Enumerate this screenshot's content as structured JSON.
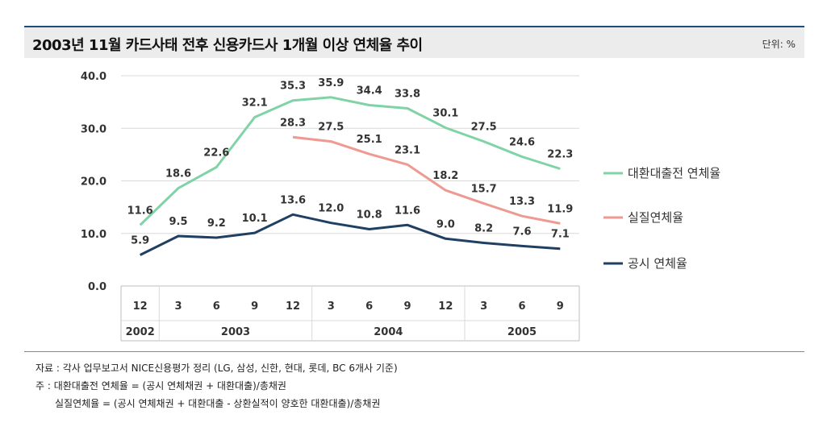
{
  "header": {
    "title": "2003년 11월 카드사태 전후 신용카드사 1개월 이상 연체율 추이",
    "unit": "단위: %"
  },
  "colors": {
    "series_0": "#7fd3a6",
    "series_1": "#ee9a92",
    "series_2": "#1f3f63"
  },
  "chart_data": {
    "type": "line",
    "x": [
      "12",
      "3",
      "6",
      "9",
      "12",
      "3",
      "6",
      "9",
      "12",
      "3",
      "6",
      "9"
    ],
    "year_groups": [
      {
        "label": "2002",
        "start": 0,
        "end": 0
      },
      {
        "label": "2003",
        "start": 1,
        "end": 4
      },
      {
        "label": "2004",
        "start": 5,
        "end": 8
      },
      {
        "label": "2005",
        "start": 9,
        "end": 11
      }
    ],
    "ylim": [
      0,
      40
    ],
    "yticks": [
      "0.0",
      "10.0",
      "20.0",
      "30.0",
      "40.0"
    ],
    "grid": true,
    "legend_position": "right",
    "series": [
      {
        "name": "대환대출전 연체율",
        "values": [
          11.6,
          18.6,
          22.6,
          32.1,
          35.3,
          35.9,
          34.4,
          33.8,
          30.1,
          27.5,
          24.6,
          22.3
        ]
      },
      {
        "name": "실질연체율",
        "values": [
          null,
          null,
          null,
          null,
          28.3,
          27.5,
          25.1,
          23.1,
          18.2,
          15.7,
          13.3,
          11.9
        ]
      },
      {
        "name": "공시 연체율",
        "values": [
          5.9,
          9.5,
          9.2,
          10.1,
          13.6,
          12.0,
          10.8,
          11.6,
          9.0,
          8.2,
          7.6,
          7.1
        ]
      }
    ]
  },
  "footnotes": {
    "source": "자료 : 각사 업무보고서 NICE신용평가 정리 (LG, 삼성, 신한, 현대, 롯데, BC 6개사 기준)",
    "note1": "주 : 대환대출전 연체율 = (공시 연체채권 + 대환대출)/총채권",
    "note2": "실질연체율 = (공시 연체채권 + 대환대출 - 상환실적이 양호한 대환대출)/총채권"
  }
}
